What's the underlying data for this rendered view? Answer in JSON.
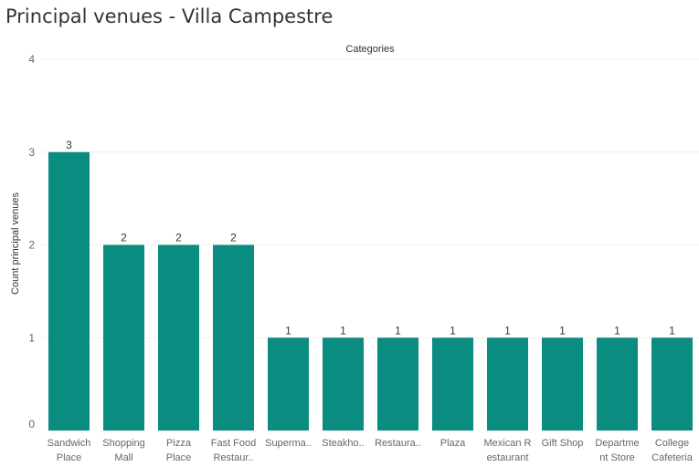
{
  "chart_data": {
    "type": "bar",
    "title": "Principal venues - Villa Campestre",
    "column_header": "Categories",
    "ylabel": "Count principal venues",
    "ylim": [
      0,
      4
    ],
    "yticks": [
      "0",
      "1",
      "2",
      "3",
      "4"
    ],
    "grid": true,
    "bar_color": "#0a8c80",
    "categories": [
      [
        "Sandwich",
        "Place"
      ],
      [
        "Shopping",
        "Mall"
      ],
      [
        "Pizza",
        "Place"
      ],
      [
        "Fast Food",
        "Restaur.."
      ],
      [
        "Superma.."
      ],
      [
        "Steakho.."
      ],
      [
        "Restaura.."
      ],
      [
        "Plaza"
      ],
      [
        "Mexican R",
        "estaurant"
      ],
      [
        "Gift Shop"
      ],
      [
        "Departme",
        "nt Store"
      ],
      [
        "College",
        "Cafeteria"
      ]
    ],
    "values": [
      3,
      2,
      2,
      2,
      1,
      1,
      1,
      1,
      1,
      1,
      1,
      1
    ]
  }
}
